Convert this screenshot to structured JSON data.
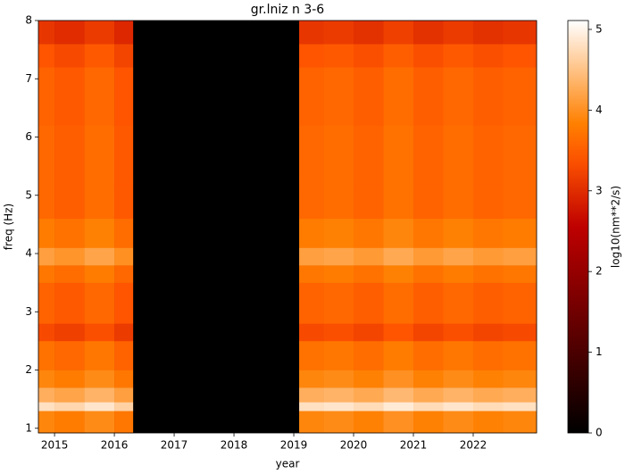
{
  "chart_data": {
    "type": "heatmap",
    "title": "gr.lniz n 3-6",
    "xlabel": "year",
    "ylabel": "freq (Hz)",
    "colorbar_label": "log10(nm**2/s)",
    "colormap": "gist_heat",
    "x_edges": [
      2014.73,
      2015.0,
      2015.5,
      2016.0,
      2016.31,
      2019.09,
      2019.5,
      2020.0,
      2020.5,
      2021.0,
      2021.5,
      2022.0,
      2022.5,
      2023.06
    ],
    "y_edges": [
      0.92,
      1.3,
      1.45,
      1.7,
      2.0,
      2.5,
      2.8,
      3.5,
      3.8,
      4.1,
      4.6,
      5.2,
      6.2,
      7.2,
      7.6,
      8
    ],
    "z": [
      [
        3.9,
        3.8,
        3.95,
        3.75,
        null,
        3.9,
        3.95,
        3.85,
        4.0,
        3.85,
        3.95,
        3.85,
        3.9
      ],
      [
        4.8,
        4.7,
        4.85,
        4.65,
        null,
        4.8,
        4.85,
        4.75,
        4.9,
        4.75,
        4.85,
        4.75,
        4.8
      ],
      [
        4.3,
        4.2,
        4.35,
        4.15,
        null,
        4.3,
        4.35,
        4.25,
        4.4,
        4.25,
        4.35,
        4.25,
        4.3
      ],
      [
        3.9,
        3.8,
        3.95,
        3.75,
        null,
        3.9,
        3.95,
        3.85,
        4.0,
        3.85,
        3.95,
        3.85,
        3.9
      ],
      [
        3.7,
        3.6,
        3.75,
        3.55,
        null,
        3.7,
        3.75,
        3.65,
        3.8,
        3.65,
        3.75,
        3.65,
        3.7
      ],
      [
        3.3,
        3.2,
        3.35,
        3.15,
        null,
        3.3,
        3.35,
        3.25,
        3.4,
        3.25,
        3.35,
        3.25,
        3.3
      ],
      [
        3.55,
        3.45,
        3.6,
        3.4,
        null,
        3.55,
        3.6,
        3.5,
        3.65,
        3.5,
        3.6,
        3.5,
        3.55
      ],
      [
        3.75,
        3.65,
        3.8,
        3.6,
        null,
        3.75,
        3.8,
        3.7,
        3.85,
        3.7,
        3.8,
        3.7,
        3.75
      ],
      [
        4.15,
        4.05,
        4.2,
        4.0,
        null,
        4.15,
        4.2,
        4.1,
        4.25,
        4.1,
        4.2,
        4.1,
        4.15
      ],
      [
        3.8,
        3.7,
        3.85,
        3.65,
        null,
        3.8,
        3.85,
        3.75,
        3.9,
        3.75,
        3.85,
        3.75,
        3.8
      ],
      [
        3.6,
        3.5,
        3.65,
        3.45,
        null,
        3.6,
        3.65,
        3.55,
        3.7,
        3.55,
        3.65,
        3.55,
        3.6
      ],
      [
        3.6,
        3.5,
        3.65,
        3.45,
        null,
        3.6,
        3.65,
        3.55,
        3.7,
        3.55,
        3.65,
        3.55,
        3.6
      ],
      [
        3.55,
        3.45,
        3.6,
        3.4,
        null,
        3.55,
        3.6,
        3.5,
        3.65,
        3.5,
        3.6,
        3.5,
        3.55
      ],
      [
        3.4,
        3.3,
        3.45,
        3.25,
        null,
        3.4,
        3.45,
        3.35,
        3.5,
        3.35,
        3.45,
        3.35,
        3.4
      ],
      [
        3.1,
        3.0,
        3.15,
        2.95,
        null,
        3.1,
        3.15,
        3.05,
        3.2,
        3.05,
        3.15,
        3.05,
        3.1
      ]
    ],
    "xlim": [
      2014.73,
      2023.06
    ],
    "xticks": [
      2015,
      2016,
      2017,
      2018,
      2019,
      2020,
      2021,
      2022
    ],
    "ylim": [
      0.92,
      8
    ],
    "yticks": [
      1,
      2,
      3,
      4,
      5,
      6,
      7,
      8
    ],
    "clim": [
      0,
      5.11
    ],
    "cticks": [
      0,
      1,
      2,
      3,
      4,
      5
    ]
  }
}
